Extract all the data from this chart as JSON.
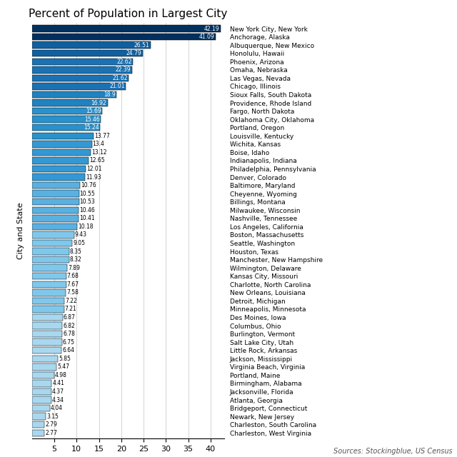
{
  "title": "Percent of Population in Largest City",
  "ylabel": "City and State",
  "source": "Sources: Stockingblue, US Census",
  "cities": [
    "New York City, New York",
    "Anchorage, Alaska",
    "Albuquerque, New Mexico",
    "Honolulu, Hawaii",
    "Phoenix, Arizona",
    "Omaha, Nebraska",
    "Las Vegas, Nevada",
    "Chicago, Illinois",
    "Sioux Falls, South Dakota",
    "Providence, Rhode Island",
    "Fargo, North Dakota",
    "Oklahoma City, Oklahoma",
    "Portland, Oregon",
    "Louisville, Kentucky",
    "Wichita, Kansas",
    "Boise, Idaho",
    "Indianapolis, Indiana",
    "Philadelphia, Pennsylvania",
    "Denver, Colorado",
    "Baltimore, Maryland",
    "Cheyenne, Wyoming",
    "Billings, Montana",
    "Milwaukee, Wisconsin",
    "Nashville, Tennessee",
    "Los Angeles, California",
    "Boston, Massachusetts",
    "Seattle, Washington",
    "Houston, Texas",
    "Manchester, New Hampshire",
    "Wilmington, Delaware",
    "Kansas City, Missouri",
    "Charlotte, North Carolina",
    "New Orleans, Louisiana",
    "Detroit, Michigan",
    "Minneapolis, Minnesota",
    "Des Moines, Iowa",
    "Columbus, Ohio",
    "Burlington, Vermont",
    "Salt Lake City, Utah",
    "Little Rock, Arkansas",
    "Jackson, Mississippi",
    "Virginia Beach, Virginia",
    "Portland, Maine",
    "Birmingham, Alabama",
    "Jacksonville, Florida",
    "Atlanta, Georgia",
    "Bridgeport, Connecticut",
    "Newark, New Jersey",
    "Charleston, South Carolina",
    "Charleston, West Virginia"
  ],
  "values": [
    42.19,
    41.09,
    26.51,
    24.79,
    22.62,
    22.39,
    21.62,
    21.01,
    18.9,
    16.92,
    15.69,
    15.46,
    15.24,
    13.77,
    13.4,
    13.12,
    12.65,
    12.01,
    11.93,
    10.76,
    10.55,
    10.53,
    10.46,
    10.41,
    10.18,
    9.43,
    9.05,
    8.35,
    8.32,
    7.89,
    7.68,
    7.67,
    7.58,
    7.22,
    7.21,
    6.87,
    6.82,
    6.78,
    6.75,
    6.64,
    5.85,
    5.47,
    4.98,
    4.41,
    4.37,
    4.34,
    4.04,
    3.15,
    2.79,
    2.77
  ],
  "bar_colors": [
    "#01305f",
    "#01305f",
    "#1060a0",
    "#1060a0",
    "#1a72b4",
    "#1a72b4",
    "#1a72b4",
    "#1a72b4",
    "#2082c0",
    "#2082c0",
    "#2892cc",
    "#2892cc",
    "#2892cc",
    "#2892cc",
    "#3399d4",
    "#3399d4",
    "#3399d4",
    "#3399d4",
    "#3399d4",
    "#5ab0e0",
    "#5ab0e0",
    "#5ab0e0",
    "#5ab0e0",
    "#5ab0e0",
    "#5ab0e0",
    "#7fc8ec",
    "#7fc8ec",
    "#7fc8ec",
    "#7fc8ec",
    "#7fc8ec",
    "#7fc8ec",
    "#7fc8ec",
    "#7fc8ec",
    "#7fc8ec",
    "#7fc8ec",
    "#a8d8f0",
    "#a8d8f0",
    "#a8d8f0",
    "#a8d8f0",
    "#a8d8f0",
    "#a8d8f0",
    "#a8d8f0",
    "#a8d8f0",
    "#a8d8f0",
    "#a8d8f0",
    "#a8d8f0",
    "#a8d8f0",
    "#a8d8f0",
    "#a8d8f0",
    "#a8d8f0"
  ],
  "xlim": [
    0,
    43
  ],
  "xticks": [
    5,
    10,
    15,
    20,
    25,
    30,
    35,
    40
  ],
  "title_fontsize": 11,
  "label_fontsize": 6.5,
  "value_fontsize": 5.5,
  "axis_fontsize": 8,
  "source_fontsize": 7,
  "bar_height": 0.82
}
